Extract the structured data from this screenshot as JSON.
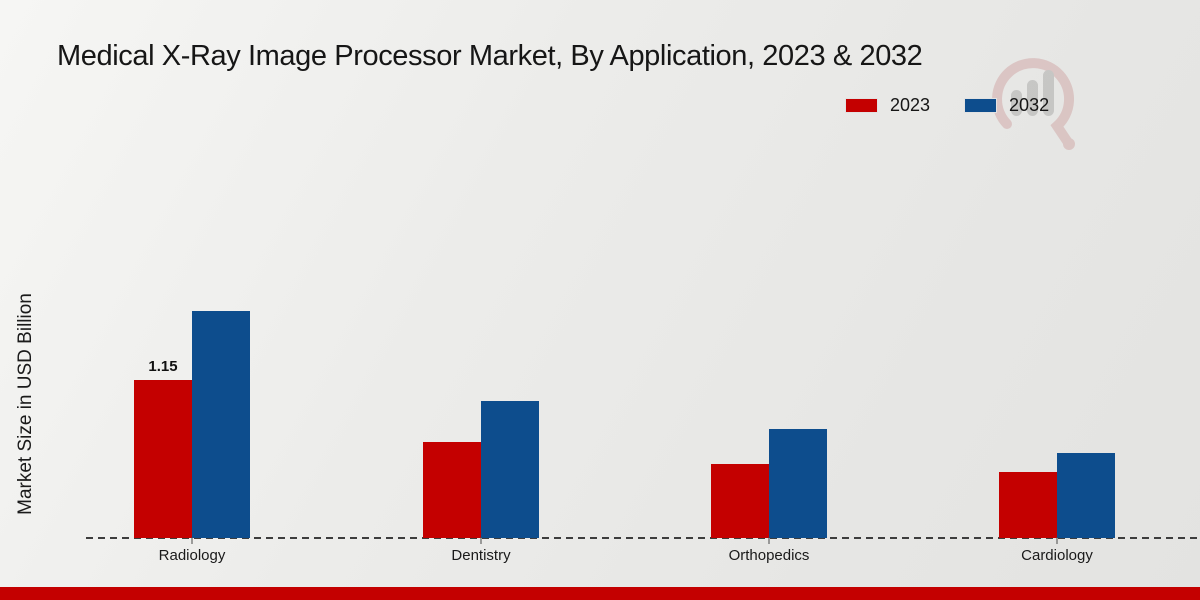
{
  "page": {
    "title": "Medical X-Ray Image Processor Market, By Application, 2023 & 2032"
  },
  "chart_data": {
    "type": "bar",
    "title": "Medical X-Ray Image Processor Market, By Application, 2023 & 2032",
    "xlabel": "",
    "ylabel": "Market Size in USD Billion",
    "categories": [
      "Radiology",
      "Dentistry",
      "Orthopedics",
      "Cardiology"
    ],
    "series": [
      {
        "name": "2023",
        "color": "#c40000",
        "values": [
          1.15,
          0.7,
          0.54,
          0.48
        ]
      },
      {
        "name": "2032",
        "color": "#0d4d8d",
        "values": [
          1.65,
          1.0,
          0.79,
          0.62
        ]
      }
    ],
    "ylim": [
      0,
      1.8
    ],
    "grid": false,
    "y_axis_ticks_visible": false,
    "legend_position": "top-right",
    "baseline_style": "dashed",
    "annotations": [
      {
        "category": "Radiology",
        "series": "2023",
        "text": "1.15"
      }
    ]
  },
  "colors": {
    "accent_red": "#c40000",
    "accent_blue": "#0d4d8d",
    "background": "#ebebe9",
    "text": "#161616"
  },
  "footer": {
    "stripe_color": "#c40000"
  },
  "watermark": {
    "description": "faint market-research logo with chart bars and red swirl"
  }
}
